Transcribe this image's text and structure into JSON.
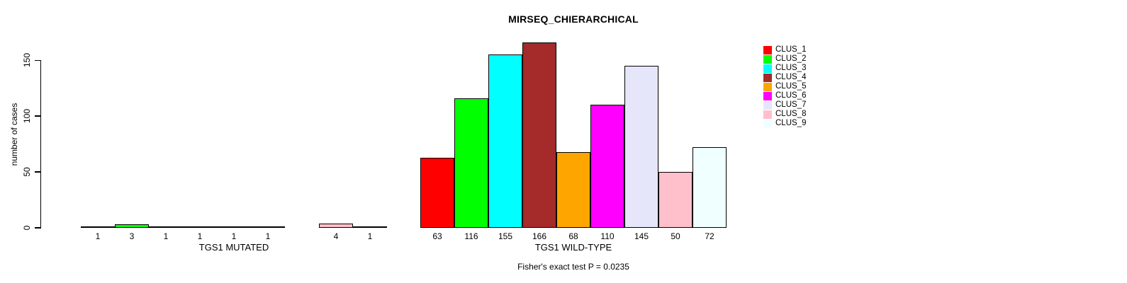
{
  "chart_data": {
    "type": "bar",
    "title": "MIRSEQ_CHIERARCHICAL",
    "ylabel": "number of cases",
    "xlabel": "",
    "ylim": [
      0,
      166
    ],
    "yticks": [
      0,
      50,
      100,
      150
    ],
    "grid": false,
    "background": "#FFFFFF",
    "categories": [
      "CLUS_1",
      "CLUS_2",
      "CLUS_3",
      "CLUS_4",
      "CLUS_5",
      "CLUS_6",
      "CLUS_7",
      "CLUS_8",
      "CLUS_9"
    ],
    "series_colors": [
      "#FF0000",
      "#00FF00",
      "#00FFFF",
      "#A52A2A",
      "#FFA500",
      "#FF00FF",
      "#E6E6FA",
      "#FFC0CB",
      "#F0FFFF"
    ],
    "bar_border_color": "#000000",
    "groups": [
      {
        "label": "TGS1 MUTATED",
        "values": [
          1,
          3,
          1,
          1,
          1,
          1,
          0,
          4,
          1
        ]
      },
      {
        "label": "TGS1 WILD-TYPE",
        "values": [
          63,
          116,
          155,
          166,
          68,
          110,
          145,
          50,
          72
        ]
      }
    ],
    "legend": {
      "position": "right",
      "entries": [
        "CLUS_1",
        "CLUS_2",
        "CLUS_3",
        "CLUS_4",
        "CLUS_5",
        "CLUS_6",
        "CLUS_7",
        "CLUS_8",
        "CLUS_9"
      ]
    },
    "annotation": "Fisher's exact test P = 0.0235"
  }
}
